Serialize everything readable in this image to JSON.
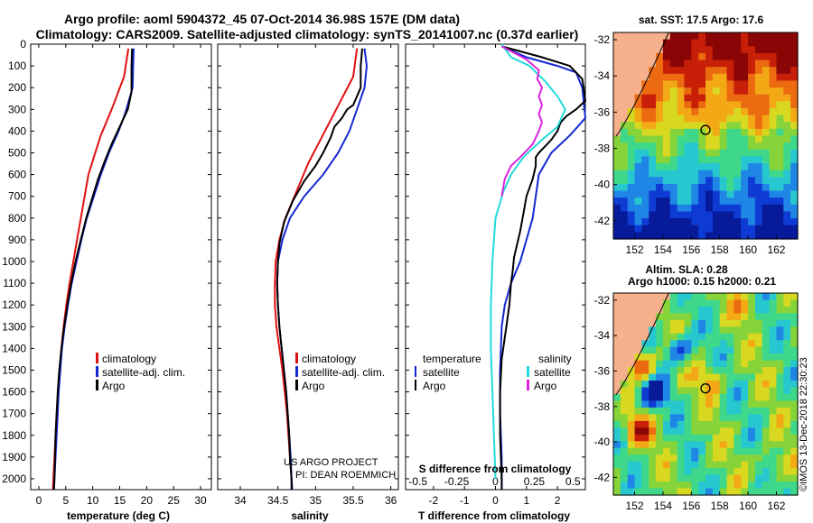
{
  "header": {
    "line1": "Argo profile: aoml 5904372_45 07-Oct-2014 36.98S 157E (DM data)",
    "line2": "Climatology: CARS2009. Satellite-adjusted climatology: synTS_20141007.nc (0.37d earlier)"
  },
  "colors": {
    "climatology": "#e01010",
    "satellite": "#1428d2",
    "argo": "#000000",
    "sat_salinity": "#22dada",
    "argo_salinity_diff": "#dd22dd"
  },
  "depth_axis": {
    "ticks": [
      "0",
      "100",
      "200",
      "300",
      "400",
      "500",
      "600",
      "700",
      "800",
      "900",
      "1000",
      "1100",
      "1200",
      "1300",
      "1400",
      "1500",
      "1600",
      "1700",
      "1800",
      "1900",
      "2000"
    ],
    "range": [
      0,
      2050
    ]
  },
  "chart_data": [
    {
      "type": "line",
      "title": "",
      "xlabel": "temperature (deg C)",
      "ylabel": "depth",
      "xlim": [
        -1.5,
        32
      ],
      "ylim": [
        2050,
        0
      ],
      "xticks": [
        "0",
        "5",
        "10",
        "15",
        "20",
        "25",
        "30"
      ],
      "legend": [
        "climatology",
        "satellite-adj. clim.",
        "Argo"
      ],
      "series": [
        {
          "name": "climatology",
          "color": "#e01010",
          "points": [
            [
              16.6,
              20
            ],
            [
              15.8,
              150
            ],
            [
              13.5,
              300
            ],
            [
              11.5,
              420
            ],
            [
              10.2,
              520
            ],
            [
              9.2,
              600
            ],
            [
              8.5,
              700
            ],
            [
              7.8,
              800
            ],
            [
              7.1,
              900
            ],
            [
              6.4,
              1000
            ],
            [
              5.7,
              1100
            ],
            [
              5.1,
              1200
            ],
            [
              4.6,
              1300
            ],
            [
              4.2,
              1400
            ],
            [
              3.9,
              1500
            ],
            [
              3.6,
              1600
            ],
            [
              3.3,
              1700
            ],
            [
              3.1,
              1800
            ],
            [
              2.9,
              1900
            ],
            [
              2.7,
              2000
            ],
            [
              2.6,
              2050
            ]
          ]
        },
        {
          "name": "satellite-adj. clim.",
          "color": "#1428d2",
          "points": [
            [
              17.6,
              20
            ],
            [
              17.5,
              100
            ],
            [
              17.4,
              200
            ],
            [
              16.0,
              320
            ],
            [
              14.8,
              400
            ],
            [
              13.0,
              500
            ],
            [
              11.5,
              600
            ],
            [
              10.2,
              700
            ],
            [
              8.9,
              800
            ],
            [
              7.9,
              900
            ],
            [
              7.0,
              1000
            ],
            [
              6.1,
              1100
            ],
            [
              5.4,
              1200
            ],
            [
              4.8,
              1300
            ],
            [
              4.3,
              1400
            ],
            [
              4.0,
              1500
            ],
            [
              3.7,
              1600
            ],
            [
              3.5,
              1700
            ],
            [
              3.3,
              1800
            ],
            [
              3.1,
              1900
            ],
            [
              2.9,
              2000
            ],
            [
              2.8,
              2050
            ]
          ]
        },
        {
          "name": "Argo",
          "color": "#000000",
          "points": [
            [
              17.3,
              20
            ],
            [
              17.2,
              100
            ],
            [
              17.2,
              220
            ],
            [
              16.5,
              300
            ],
            [
              15.0,
              380
            ],
            [
              13.5,
              460
            ],
            [
              12.2,
              540
            ],
            [
              11.0,
              620
            ],
            [
              10.0,
              700
            ],
            [
              8.8,
              800
            ],
            [
              7.8,
              900
            ],
            [
              6.8,
              1000
            ],
            [
              6.0,
              1100
            ],
            [
              5.3,
              1200
            ],
            [
              4.7,
              1300
            ],
            [
              4.2,
              1400
            ],
            [
              3.8,
              1500
            ],
            [
              3.5,
              1600
            ],
            [
              3.3,
              1700
            ],
            [
              3.1,
              1800
            ],
            [
              3.0,
              1900
            ],
            [
              2.9,
              2000
            ],
            [
              2.8,
              2050
            ]
          ]
        }
      ],
      "annotations": []
    },
    {
      "type": "line",
      "title": "",
      "xlabel": "salinity",
      "ylabel": "depth",
      "xlim": [
        33.7,
        36.1
      ],
      "ylim": [
        2050,
        0
      ],
      "xticks": [
        "34",
        "34.5",
        "35",
        "35.5",
        "36"
      ],
      "legend": [
        "climatology",
        "satellite-adj. clim.",
        "Argo"
      ],
      "series": [
        {
          "name": "climatology",
          "color": "#e01010",
          "points": [
            [
              35.55,
              20
            ],
            [
              35.5,
              150
            ],
            [
              35.35,
              250
            ],
            [
              35.2,
              350
            ],
            [
              35.05,
              450
            ],
            [
              34.9,
              550
            ],
            [
              34.72,
              700
            ],
            [
              34.6,
              800
            ],
            [
              34.52,
              900
            ],
            [
              34.47,
              1000
            ],
            [
              34.46,
              1100
            ],
            [
              34.46,
              1200
            ],
            [
              34.48,
              1300
            ],
            [
              34.52,
              1400
            ],
            [
              34.56,
              1500
            ],
            [
              34.59,
              1600
            ],
            [
              34.62,
              1700
            ],
            [
              34.64,
              1800
            ],
            [
              34.66,
              1900
            ],
            [
              34.68,
              2000
            ],
            [
              34.69,
              2050
            ]
          ]
        },
        {
          "name": "satellite-adj. clim.",
          "color": "#1428d2",
          "points": [
            [
              35.65,
              20
            ],
            [
              35.68,
              100
            ],
            [
              35.65,
              200
            ],
            [
              35.55,
              300
            ],
            [
              35.45,
              400
            ],
            [
              35.3,
              500
            ],
            [
              35.1,
              600
            ],
            [
              34.85,
              700
            ],
            [
              34.66,
              800
            ],
            [
              34.56,
              900
            ],
            [
              34.5,
              1000
            ],
            [
              34.49,
              1100
            ],
            [
              34.5,
              1200
            ],
            [
              34.52,
              1300
            ],
            [
              34.55,
              1400
            ],
            [
              34.58,
              1500
            ],
            [
              34.61,
              1600
            ],
            [
              34.63,
              1700
            ],
            [
              34.65,
              1800
            ],
            [
              34.67,
              1900
            ],
            [
              34.68,
              2000
            ],
            [
              34.69,
              2050
            ]
          ]
        },
        {
          "name": "Argo",
          "color": "#000000",
          "points": [
            [
              35.62,
              20
            ],
            [
              35.6,
              100
            ],
            [
              35.6,
              200
            ],
            [
              35.5,
              280
            ],
            [
              35.42,
              300
            ],
            [
              35.35,
              340
            ],
            [
              35.25,
              380
            ],
            [
              35.2,
              430
            ],
            [
              35.1,
              500
            ],
            [
              35.0,
              560
            ],
            [
              34.85,
              630
            ],
            [
              34.7,
              720
            ],
            [
              34.58,
              820
            ],
            [
              34.52,
              920
            ],
            [
              34.5,
              1000
            ],
            [
              34.49,
              1100
            ],
            [
              34.5,
              1200
            ],
            [
              34.52,
              1300
            ],
            [
              34.55,
              1400
            ],
            [
              34.58,
              1500
            ],
            [
              34.61,
              1600
            ],
            [
              34.63,
              1700
            ],
            [
              34.65,
              1800
            ],
            [
              34.66,
              1900
            ],
            [
              34.68,
              2000
            ],
            [
              34.68,
              2050
            ]
          ]
        }
      ],
      "annotations": [
        "US ARGO PROJECT",
        "PI: DEAN ROEMMICH"
      ]
    },
    {
      "type": "line",
      "title": "",
      "xlabel": "T difference from climatology",
      "xlabel_top": "S difference from climatology",
      "ylabel": "depth",
      "xlim": [
        -2.9,
        2.9
      ],
      "ylim": [
        2050,
        0
      ],
      "xticks": [
        "-2",
        "-1",
        "0",
        "1",
        "2"
      ],
      "xticks_top": [
        "-0.5",
        "-0.25",
        "0",
        "0.25",
        "0.5"
      ],
      "legend_left_title": "temperature",
      "legend_right_title": "salinity",
      "legend": [
        "satellite",
        "Argo",
        "satellite",
        "Argo"
      ],
      "series": [
        {
          "name": "temperature satellite",
          "color": "#1428d2",
          "points": [
            [
              0.2,
              10
            ],
            [
              1.0,
              60
            ],
            [
              2.0,
              100
            ],
            [
              2.6,
              130
            ],
            [
              2.8,
              200
            ],
            [
              2.9,
              340
            ],
            [
              2.4,
              420
            ],
            [
              1.8,
              500
            ],
            [
              1.4,
              600
            ],
            [
              1.3,
              700
            ],
            [
              1.2,
              800
            ],
            [
              1.0,
              900
            ],
            [
              0.8,
              1000
            ],
            [
              0.5,
              1100
            ],
            [
              0.3,
              1200
            ],
            [
              0.2,
              1300
            ],
            [
              0.15,
              1500
            ],
            [
              0.15,
              1700
            ],
            [
              0.2,
              1900
            ],
            [
              0.2,
              2050
            ]
          ]
        },
        {
          "name": "temperature Argo",
          "color": "#000000",
          "points": [
            [
              0.2,
              10
            ],
            [
              1.5,
              60
            ],
            [
              2.4,
              100
            ],
            [
              2.8,
              160
            ],
            [
              2.9,
              260
            ],
            [
              2.6,
              300
            ],
            [
              2.3,
              330
            ],
            [
              2.1,
              360
            ],
            [
              2.0,
              400
            ],
            [
              1.8,
              440
            ],
            [
              1.6,
              470
            ],
            [
              1.4,
              500
            ],
            [
              1.3,
              520
            ],
            [
              1.3,
              560
            ],
            [
              1.2,
              620
            ],
            [
              1.0,
              700
            ],
            [
              0.9,
              780
            ],
            [
              0.8,
              860
            ],
            [
              0.7,
              920
            ],
            [
              0.6,
              980
            ],
            [
              0.55,
              1050
            ],
            [
              0.5,
              1100
            ],
            [
              0.45,
              1200
            ],
            [
              0.35,
              1300
            ],
            [
              0.2,
              1450
            ],
            [
              0.15,
              1600
            ],
            [
              0.15,
              1800
            ],
            [
              0.2,
              2000
            ],
            [
              0.2,
              2050
            ]
          ]
        },
        {
          "name": "salinity satellite",
          "color": "#22dada",
          "points": [
            [
              0.04,
              0
            ],
            [
              0.1,
              60
            ],
            [
              0.22,
              100
            ],
            [
              0.32,
              170
            ],
            [
              0.4,
              240
            ],
            [
              0.45,
              300
            ],
            [
              0.4,
              380
            ],
            [
              0.3,
              440
            ],
            [
              0.18,
              520
            ],
            [
              0.1,
              600
            ],
            [
              0.05,
              680
            ],
            [
              0.0,
              800
            ],
            [
              -0.02,
              1000
            ],
            [
              -0.03,
              1200
            ],
            [
              -0.03,
              1400
            ],
            [
              -0.02,
              1600
            ],
            [
              -0.01,
              1800
            ],
            [
              0.0,
              2000
            ]
          ]
        },
        {
          "name": "salinity Argo",
          "color": "#dd22dd",
          "points": [
            [
              0.04,
              10
            ],
            [
              0.2,
              70
            ],
            [
              0.28,
              120
            ],
            [
              0.27,
              160
            ],
            [
              0.3,
              200
            ],
            [
              0.28,
              240
            ],
            [
              0.3,
              280
            ],
            [
              0.28,
              320
            ],
            [
              0.3,
              360
            ],
            [
              0.28,
              400
            ],
            [
              0.24,
              460
            ],
            [
              0.16,
              520
            ],
            [
              0.1,
              560
            ],
            [
              0.06,
              620
            ],
            [
              0.04,
              700
            ]
          ]
        }
      ],
      "annotations": []
    },
    {
      "type": "heatmap",
      "title": "sat. SST: 17.5 Argo: 17.6",
      "xlabel": "",
      "ylabel": "",
      "xlim": [
        150.5,
        163.5
      ],
      "ylim": [
        -43,
        -31.6
      ],
      "xticks": [
        "152",
        "154",
        "156",
        "158",
        "160",
        "162"
      ],
      "yticks": [
        "-32",
        "-34",
        "-36",
        "-38",
        "-40",
        "-42"
      ],
      "argo_position": [
        157.0,
        -36.98
      ],
      "colormap": [
        "#061a9a",
        "#0f3bd5",
        "#1f86e6",
        "#27c7d0",
        "#3fd88a",
        "#86d43a",
        "#d8d820",
        "#f2a915",
        "#ec6a10",
        "#c81f08",
        "#8a0606"
      ],
      "land_color": "#f6b08c"
    },
    {
      "type": "heatmap",
      "title": "Altim. SLA: 0.28",
      "subtitle": "Argo h1000: 0.15 h2000: 0.21",
      "xlabel": "",
      "ylabel": "",
      "xlim": [
        150.5,
        163.5
      ],
      "ylim": [
        -43,
        -31.6
      ],
      "xticks": [
        "152",
        "154",
        "156",
        "158",
        "160",
        "162"
      ],
      "yticks": [
        "-32",
        "-34",
        "-36",
        "-38",
        "-40",
        "-42"
      ],
      "argo_position": [
        157.0,
        -36.98
      ]
    }
  ],
  "credit": "©IMOS 13-Dec-2018 22:30:23"
}
